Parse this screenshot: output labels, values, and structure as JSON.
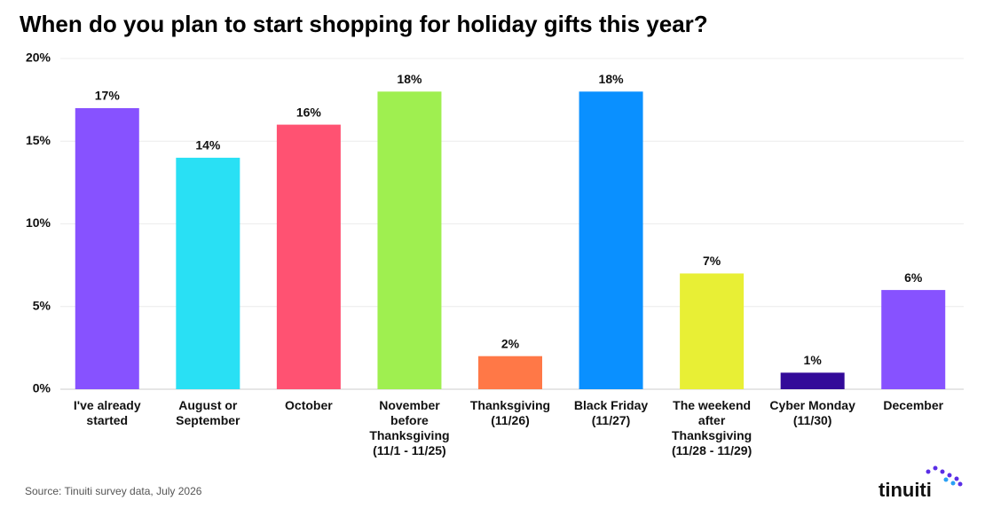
{
  "chart_data": {
    "type": "bar",
    "title": "When do you plan to start shopping for holiday gifts this year?",
    "categories": [
      "I've already started",
      "August or September",
      "October",
      "November before Thanksgiving (11/1 - 11/25)",
      "Thanksgiving (11/26)",
      "Black Friday (11/27)",
      "The weekend after Thanksgiving (11/28 - 11/29)",
      "Cyber Monday (11/30)",
      "December"
    ],
    "values": [
      17,
      14,
      16,
      18,
      2,
      18,
      7,
      1,
      6
    ],
    "value_labels": [
      "17%",
      "14%",
      "16%",
      "18%",
      "2%",
      "18%",
      "7%",
      "1%",
      "6%"
    ],
    "colors": [
      "#8752ff",
      "#29e0f4",
      "#ff5272",
      "#9fef50",
      "#ff7847",
      "#0a90ff",
      "#e8ef35",
      "#330a99",
      "#8752ff"
    ],
    "ylim": [
      0,
      20
    ],
    "yticks": [
      {
        "value": 0,
        "label": "0%"
      },
      {
        "value": 5,
        "label": "5%"
      },
      {
        "value": 10,
        "label": "10%"
      },
      {
        "value": 15,
        "label": "15%"
      },
      {
        "value": 20,
        "label": "20%"
      }
    ],
    "grid": true,
    "source": "Source: Tinuiti survey data, July 2026",
    "logo": "tinuiti"
  }
}
